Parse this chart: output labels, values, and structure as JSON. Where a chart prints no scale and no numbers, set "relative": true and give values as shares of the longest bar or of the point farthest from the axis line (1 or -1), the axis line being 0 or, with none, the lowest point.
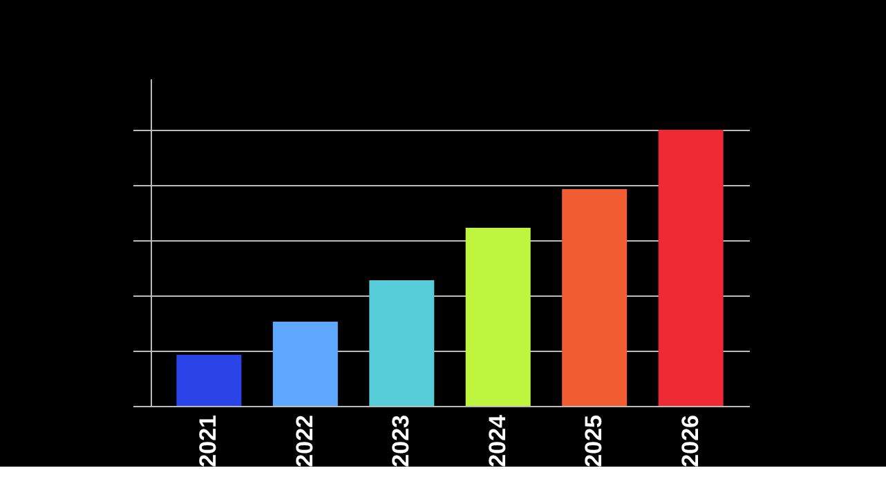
{
  "chart_data": {
    "type": "bar",
    "relative": true,
    "grid": "y",
    "categories": [
      "2021",
      "2022",
      "2023",
      "2024",
      "2025",
      "2026"
    ],
    "values": [
      0.185,
      0.305,
      0.455,
      0.645,
      0.785,
      1
    ],
    "colors": [
      "#2a44e8",
      "#5fa8ff",
      "#55ccd8",
      "#bdf53f",
      "#f25c33",
      "#ee2a35"
    ],
    "tick_labels": "x"
  }
}
